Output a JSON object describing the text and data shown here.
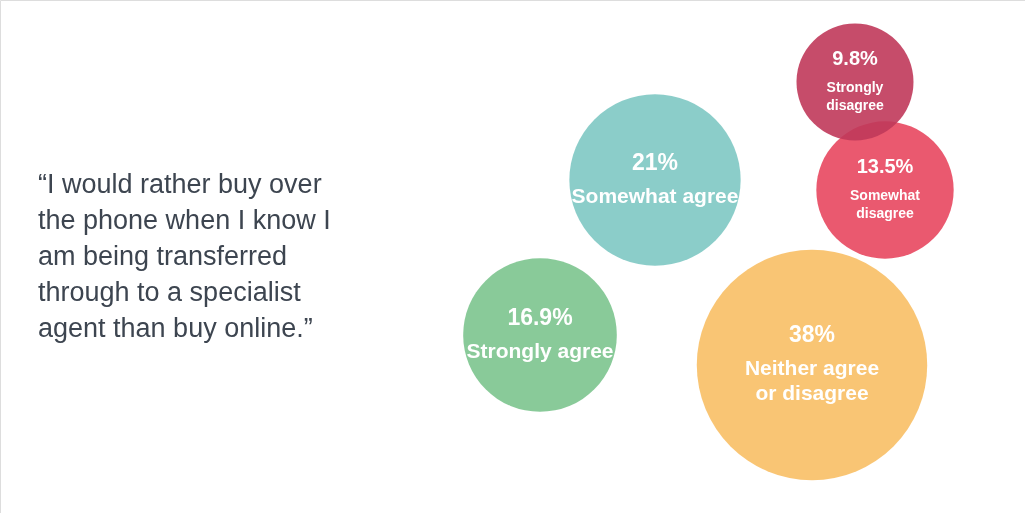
{
  "chart_data": {
    "type": "other",
    "title": "“I would rather buy over the phone when I know I am being transferred through to a specialist agent than buy online.”",
    "categories": [
      "Strongly agree",
      "Somewhat agree",
      "Neither agree or disagree",
      "Somewhat disagree",
      "Strongly disagree"
    ],
    "values": [
      16.9,
      21,
      38,
      13.5,
      9.8
    ],
    "value_labels": [
      "16.9%",
      "21%",
      "38%",
      "13.5%",
      "9.8%"
    ],
    "colors": [
      "#7cc48e",
      "#7ec8c3",
      "#f8bf65",
      "#e8475f",
      "#c0395a"
    ]
  }
}
